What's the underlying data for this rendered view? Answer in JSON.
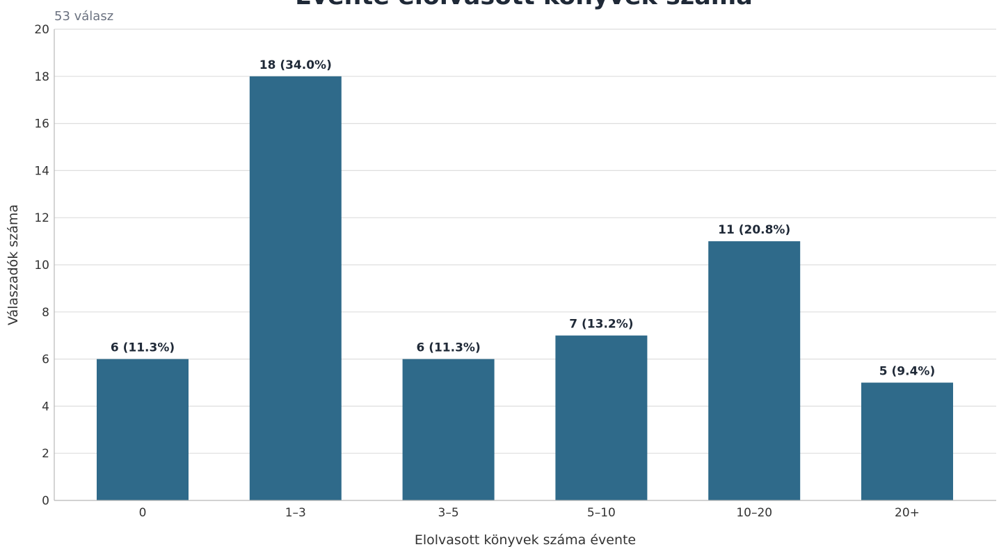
{
  "chart_data": {
    "type": "bar",
    "title": "Évente elolvasott könyvek száma",
    "subtitle": "53 válasz",
    "xlabel": "Elolvasott könyvek száma évente",
    "ylabel": "Válaszadók száma",
    "categories": [
      "0",
      "1–3",
      "3–5",
      "5–10",
      "10–20",
      "20+"
    ],
    "values": [
      6,
      18,
      6,
      7,
      11,
      5
    ],
    "data_labels": [
      "6 (11.3%)",
      "18 (34.0%)",
      "6 (11.3%)",
      "7 (13.2%)",
      "11 (20.8%)",
      "5 (9.4%)"
    ],
    "ylim": [
      0,
      20
    ],
    "yticks": [
      0,
      2,
      4,
      6,
      8,
      10,
      12,
      14,
      16,
      18,
      20
    ],
    "grid": true,
    "bar_color": "#2f6a8a"
  }
}
